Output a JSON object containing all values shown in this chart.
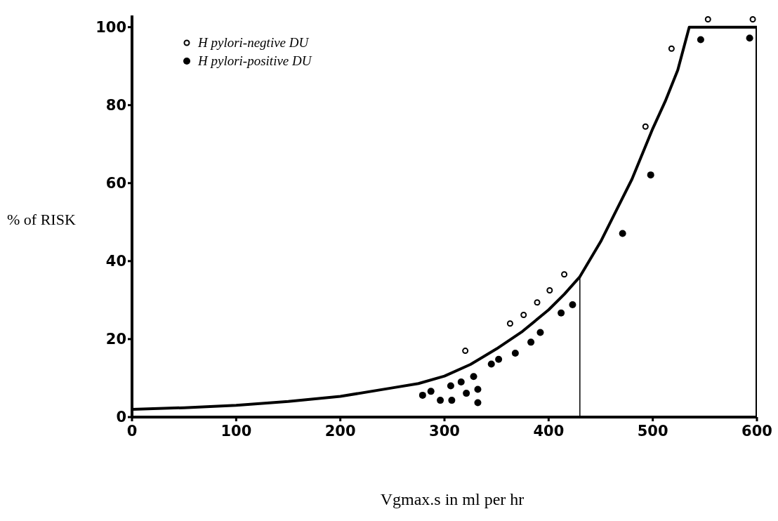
{
  "chart_data": {
    "type": "scatter",
    "xlabel": "Vgmax.s in ml per hr",
    "ylabel": "% of RISK",
    "xlim": [
      0,
      600
    ],
    "xticks": [
      0,
      100,
      200,
      300,
      400,
      500,
      600
    ],
    "ylim": [
      0,
      103
    ],
    "yticks": [
      0,
      20,
      40,
      60,
      80,
      100
    ],
    "grid": false,
    "legend": "top left",
    "marker": "circle",
    "series": [
      {
        "name": "H pylori-negtive DU",
        "color": "#000000",
        "x": [
          320,
          363,
          376,
          389,
          401,
          415,
          493,
          518,
          553,
          596
        ],
        "values": [
          17,
          24,
          26.2,
          29.4,
          32.5,
          36.6,
          74.5,
          94.5,
          102,
          102
        ]
      },
      {
        "name": "H pylori-positive DU",
        "color": "#000000",
        "x": [
          279,
          287,
          296,
          306,
          307,
          316,
          321,
          328,
          332,
          332,
          345,
          352,
          368,
          383,
          392,
          412,
          423,
          471,
          498,
          546,
          593
        ],
        "values": [
          5.6,
          6.6,
          4.3,
          8,
          4.3,
          9,
          6.1,
          10.4,
          7.1,
          3.7,
          13.6,
          14.8,
          16.4,
          19.2,
          21.7,
          26.7,
          28.8,
          47.1,
          62.1,
          96.8,
          97.2
        ]
      },
      {
        "type": "line",
        "marker": "none",
        "color": "#000000",
        "x": [
          0,
          50,
          100,
          150,
          200,
          250,
          275,
          300,
          325,
          350,
          375,
          400,
          415,
          430,
          450,
          465,
          480,
          500,
          512,
          524,
          535,
          600,
          600
        ],
        "values": [
          2,
          2.4,
          3,
          4,
          5.3,
          7.5,
          8.6,
          10.5,
          13.5,
          17.5,
          22,
          27.5,
          31.5,
          36,
          45,
          53,
          61,
          74,
          81,
          89,
          100,
          100,
          0
        ]
      },
      {
        "type": "line",
        "marker": "none",
        "color": "#000000",
        "x": [
          430,
          430
        ],
        "values": [
          0,
          36
        ]
      }
    ]
  }
}
